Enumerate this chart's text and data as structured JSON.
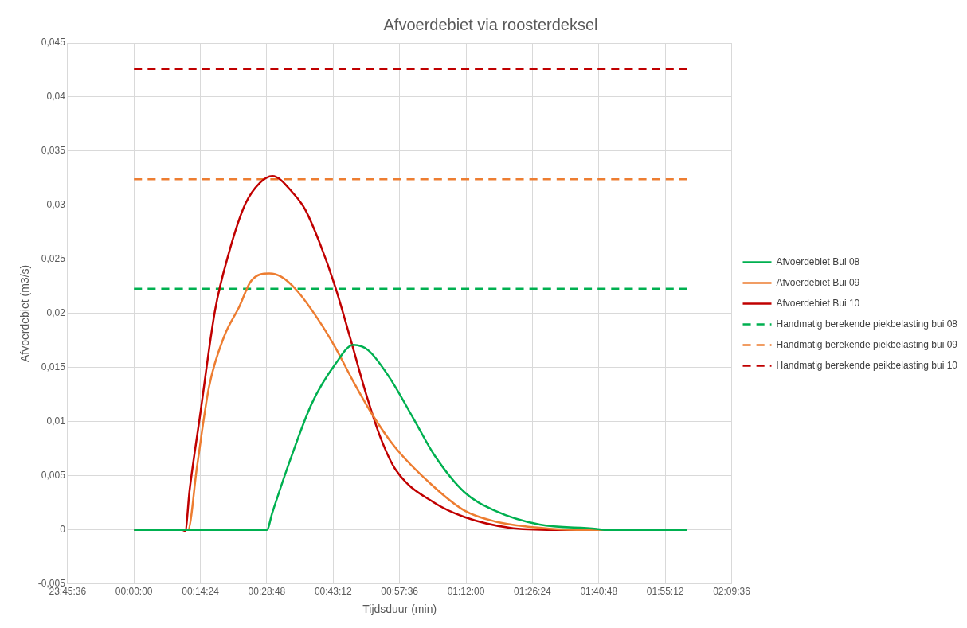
{
  "chart_data": {
    "type": "line",
    "title": "Afvoerdebiet via roosterdeksel",
    "xlabel": "Tijdsduur (min)",
    "ylabel": "Afvoerdebiet (m3/s)",
    "xlim": [
      "1999-12-31T23:45:36",
      "2000-01-01T02:09:36"
    ],
    "xticks": [
      {
        "value": "1999-12-31T23:45:36",
        "label": "23:45:36"
      },
      {
        "value": "2000-01-01T00:00:00",
        "label": "00:00:00"
      },
      {
        "value": "2000-01-01T00:14:24",
        "label": "00:14:24"
      },
      {
        "value": "2000-01-01T00:28:48",
        "label": "00:28:48"
      },
      {
        "value": "2000-01-01T00:43:12",
        "label": "00:43:12"
      },
      {
        "value": "2000-01-01T00:57:36",
        "label": "00:57:36"
      },
      {
        "value": "2000-01-01T01:12:00",
        "label": "01:12:00"
      },
      {
        "value": "2000-01-01T01:26:24",
        "label": "01:26:24"
      },
      {
        "value": "2000-01-01T01:40:48",
        "label": "01:40:48"
      },
      {
        "value": "2000-01-01T01:55:12",
        "label": "01:55:12"
      },
      {
        "value": "2000-01-01T02:09:36",
        "label": "02:09:36"
      }
    ],
    "ylim": [
      -0.005,
      0.045
    ],
    "yticks": [
      {
        "value": -0.005,
        "label": "-0,005"
      },
      {
        "value": 0,
        "label": "0"
      },
      {
        "value": 0.005,
        "label": "0,005"
      },
      {
        "value": 0.01,
        "label": "0,01"
      },
      {
        "value": 0.015,
        "label": "0,015"
      },
      {
        "value": 0.02,
        "label": "0,02"
      },
      {
        "value": 0.025,
        "label": "0,025"
      },
      {
        "value": 0.03,
        "label": "0,03"
      },
      {
        "value": 0.035,
        "label": "0,035"
      },
      {
        "value": 0.04,
        "label": "0,04"
      },
      {
        "value": 0.045,
        "label": "0,045"
      }
    ],
    "grid": true,
    "legend": "right",
    "marker": "none",
    "series": [
      {
        "name": "Afvoerdebiet Bui 08",
        "color": "#00b050",
        "line_style": "solid",
        "x": [
          "2000-01-01T00:00:00",
          "2000-01-01T00:28:48",
          "2000-01-01T00:30:00",
          "2000-01-01T00:33:54",
          "2000-01-01T00:38:28",
          "2000-01-01T00:43:37",
          "2000-01-01T00:47:35",
          "2000-01-01T00:50:49",
          "2000-01-01T00:55:23",
          "2000-01-01T01:00:36",
          "2000-01-01T01:05:10",
          "2000-01-01T01:11:38",
          "2000-01-01T01:18:11",
          "2000-01-01T01:27:58",
          "2000-01-01T01:40:19",
          "2000-01-01T01:42:00",
          "2000-01-01T02:00:00"
        ],
        "values": [
          0,
          0,
          0.0016,
          0.0065,
          0.0116,
          0.0153,
          0.0171,
          0.0166,
          0.0141,
          0.0103,
          0.0069,
          0.0035,
          0.0018,
          0.0005,
          0.0001,
          0,
          0
        ]
      },
      {
        "name": "Afvoerdebiet Bui 09",
        "color": "#ed7d31",
        "line_style": "solid",
        "x": [
          "2000-01-01T00:00:00",
          "2000-01-01T00:11:42",
          "2000-01-01T00:13:41",
          "2000-01-01T00:16:16",
          "2000-01-01T00:19:34",
          "2000-01-01T00:22:48",
          "2000-01-01T00:25:23",
          "2000-01-01T00:29:20",
          "2000-01-01T00:31:55",
          "2000-01-01T00:35:10",
          "2000-01-01T00:39:43",
          "2000-01-01T00:43:37",
          "2000-01-01T00:47:35",
          "2000-01-01T00:51:29",
          "2000-01-01T00:56:42",
          "2000-01-01T01:04:30",
          "2000-01-01T01:11:38",
          "2000-01-01T01:18:11",
          "2000-01-01T01:27:58",
          "2000-01-01T01:36:00",
          "2000-01-01T02:00:00"
        ],
        "values": [
          0,
          0,
          0.0059,
          0.0132,
          0.0179,
          0.0206,
          0.023,
          0.0237,
          0.0234,
          0.0222,
          0.0196,
          0.0169,
          0.0137,
          0.0108,
          0.0076,
          0.0042,
          0.0018,
          0.0008,
          0.0002,
          0,
          0
        ]
      },
      {
        "name": "Afvoerdebiet Bui 10",
        "color": "#c00000",
        "line_style": "solid",
        "x": [
          "2000-01-01T00:00:00",
          "2000-01-01T00:10:30",
          "2000-01-01T00:11:06",
          "2000-01-01T00:12:04",
          "2000-01-01T00:14:20",
          "2000-01-01T00:17:35",
          "2000-01-01T00:20:31",
          "2000-01-01T00:24:07",
          "2000-01-01T00:27:22",
          "2000-01-01T00:30:00",
          "2000-01-01T00:34:34",
          "2000-01-01T00:37:08",
          "2000-01-01T00:40:23",
          "2000-01-01T00:43:37",
          "2000-01-01T00:46:55",
          "2000-01-01T00:50:10",
          "2000-01-01T00:53:24",
          "2000-01-01T00:56:42",
          "2000-01-01T01:05:10",
          "2000-01-01T01:11:38",
          "2000-01-01T01:21:25",
          "2000-01-01T01:31:12",
          "2000-01-01T02:00:00"
        ],
        "values": [
          0,
          0,
          -0.0001,
          0.0037,
          0.0106,
          0.0203,
          0.0255,
          0.0301,
          0.0321,
          0.0327,
          0.0311,
          0.0296,
          0.0264,
          0.0225,
          0.0177,
          0.0128,
          0.0086,
          0.0056,
          0.0025,
          0.0012,
          0.0002,
          0,
          0
        ]
      },
      {
        "name": "Handmatig berekende piekbelasting bui 08",
        "color": "#00b050",
        "line_style": "dashed",
        "x": [
          "2000-01-01T00:00:00",
          "2000-01-01T02:00:00"
        ],
        "values": [
          0.0223,
          0.0223
        ]
      },
      {
        "name": "Handmatig berekende piekbelasting bui 09",
        "color": "#ed7d31",
        "line_style": "dashed",
        "x": [
          "2000-01-01T00:00:00",
          "2000-01-01T02:00:00"
        ],
        "values": [
          0.0324,
          0.0324
        ]
      },
      {
        "name": "Handmatig berekende peikbelasting bui 10",
        "color": "#c00000",
        "line_style": "dashed",
        "x": [
          "2000-01-01T00:00:00",
          "2000-01-01T02:00:00"
        ],
        "values": [
          0.0426,
          0.0426
        ]
      }
    ]
  }
}
